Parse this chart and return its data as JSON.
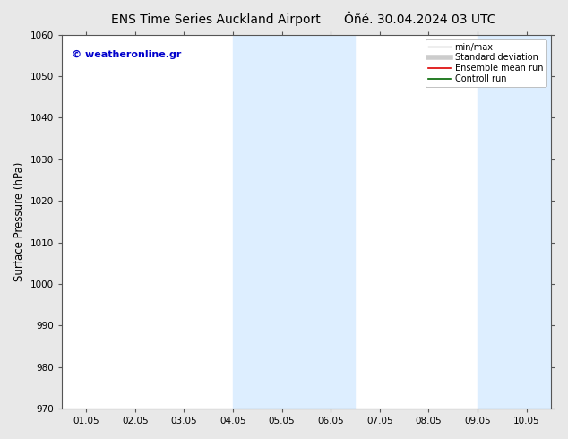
{
  "title_left": "ENS Time Series Auckland Airport",
  "title_right": "Ôñé. 30.04.2024 03 UTC",
  "ylabel": "Surface Pressure (hPa)",
  "ylim": [
    970,
    1060
  ],
  "yticks": [
    970,
    980,
    990,
    1000,
    1010,
    1020,
    1030,
    1040,
    1050,
    1060
  ],
  "xlabels": [
    "01.05",
    "02.05",
    "03.05",
    "04.05",
    "05.05",
    "06.05",
    "07.05",
    "08.05",
    "09.05",
    "10.05"
  ],
  "x_positions": [
    0,
    1,
    2,
    3,
    4,
    5,
    6,
    7,
    8,
    9
  ],
  "xlim": [
    -0.5,
    9.5
  ],
  "shaded_bands": [
    {
      "xmin": 3.0,
      "xmax": 5.5
    },
    {
      "xmin": 8.0,
      "xmax": 9.5
    }
  ],
  "band_color": "#ddeeff",
  "watermark": "© weatheronline.gr",
  "watermark_color": "#0000cc",
  "bg_color": "#ffffff",
  "fig_bg_color": "#e8e8e8",
  "legend_items": [
    {
      "label": "min/max",
      "color": "#aaaaaa",
      "lw": 1.0,
      "linestyle": "-"
    },
    {
      "label": "Standard deviation",
      "color": "#cccccc",
      "lw": 4,
      "linestyle": "-"
    },
    {
      "label": "Ensemble mean run",
      "color": "#dd0000",
      "lw": 1.2,
      "linestyle": "-"
    },
    {
      "label": "Controll run",
      "color": "#006600",
      "lw": 1.2,
      "linestyle": "-"
    }
  ],
  "title_fontsize": 10,
  "tick_fontsize": 7.5,
  "ylabel_fontsize": 8.5,
  "watermark_fontsize": 8,
  "legend_fontsize": 7
}
